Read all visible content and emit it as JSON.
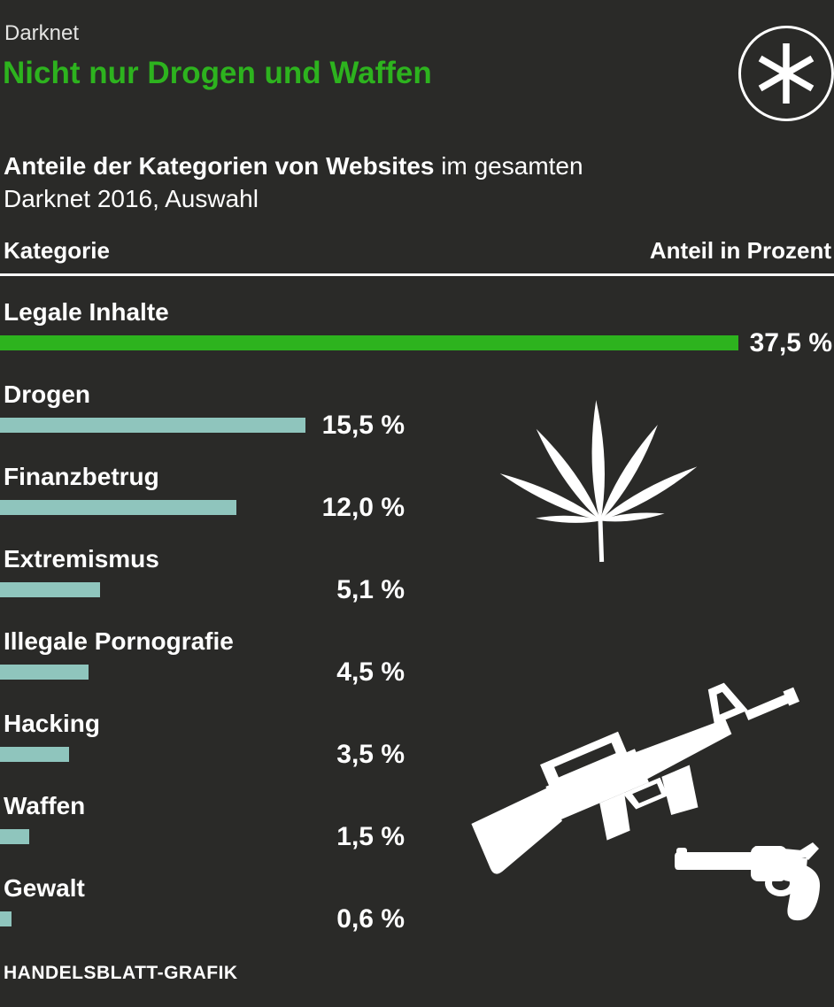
{
  "header": {
    "kicker": "Darknet",
    "title": "Nicht nur Drogen und Waffen",
    "subtitle_bold": "Anteile der Kategorien von Websites",
    "subtitle_regular_line1": " im gesamten",
    "subtitle_line2": "Darknet 2016, Auswahl"
  },
  "table": {
    "column_left": "Kategorie",
    "column_right": "Anteil in Prozent"
  },
  "chart_data": {
    "type": "bar",
    "orientation": "horizontal",
    "title": "Nicht nur Drogen und Waffen",
    "subtitle": "Anteile der Kategorien von Websites im gesamten Darknet 2016, Auswahl",
    "categories": [
      "Legale Inhalte",
      "Drogen",
      "Finanzbetrug",
      "Extremismus",
      "Illegale Pornografie",
      "Hacking",
      "Waffen",
      "Gewalt"
    ],
    "values": [
      37.5,
      15.5,
      12.0,
      5.1,
      4.5,
      3.5,
      1.5,
      0.6
    ],
    "value_labels": [
      "37,5 %",
      "15,5 %",
      "12,0 %",
      "5,1 %",
      "4,5 %",
      "3,5 %",
      "1,5 %",
      "0,6 %"
    ],
    "unit": "Prozent",
    "xlim": [
      0,
      37.5
    ],
    "grid": false,
    "legend": false,
    "highlight_index": 0,
    "bar_color_highlight": "#2db31e",
    "bar_color_default": "#8fc5bd"
  },
  "icons": {
    "badge": "asterisk-in-circle",
    "drugs": "cannabis-leaf",
    "weapons_rifle": "assault-rifle",
    "weapons_pistol": "revolver"
  },
  "footer": {
    "credit": "HANDELSBLATT-GRAFIK"
  },
  "colors": {
    "background": "#2a2a28",
    "accent_green": "#2db31e",
    "bar_teal": "#8fc5bd",
    "text": "#ffffff",
    "kicker_text": "#e4e4e2"
  }
}
